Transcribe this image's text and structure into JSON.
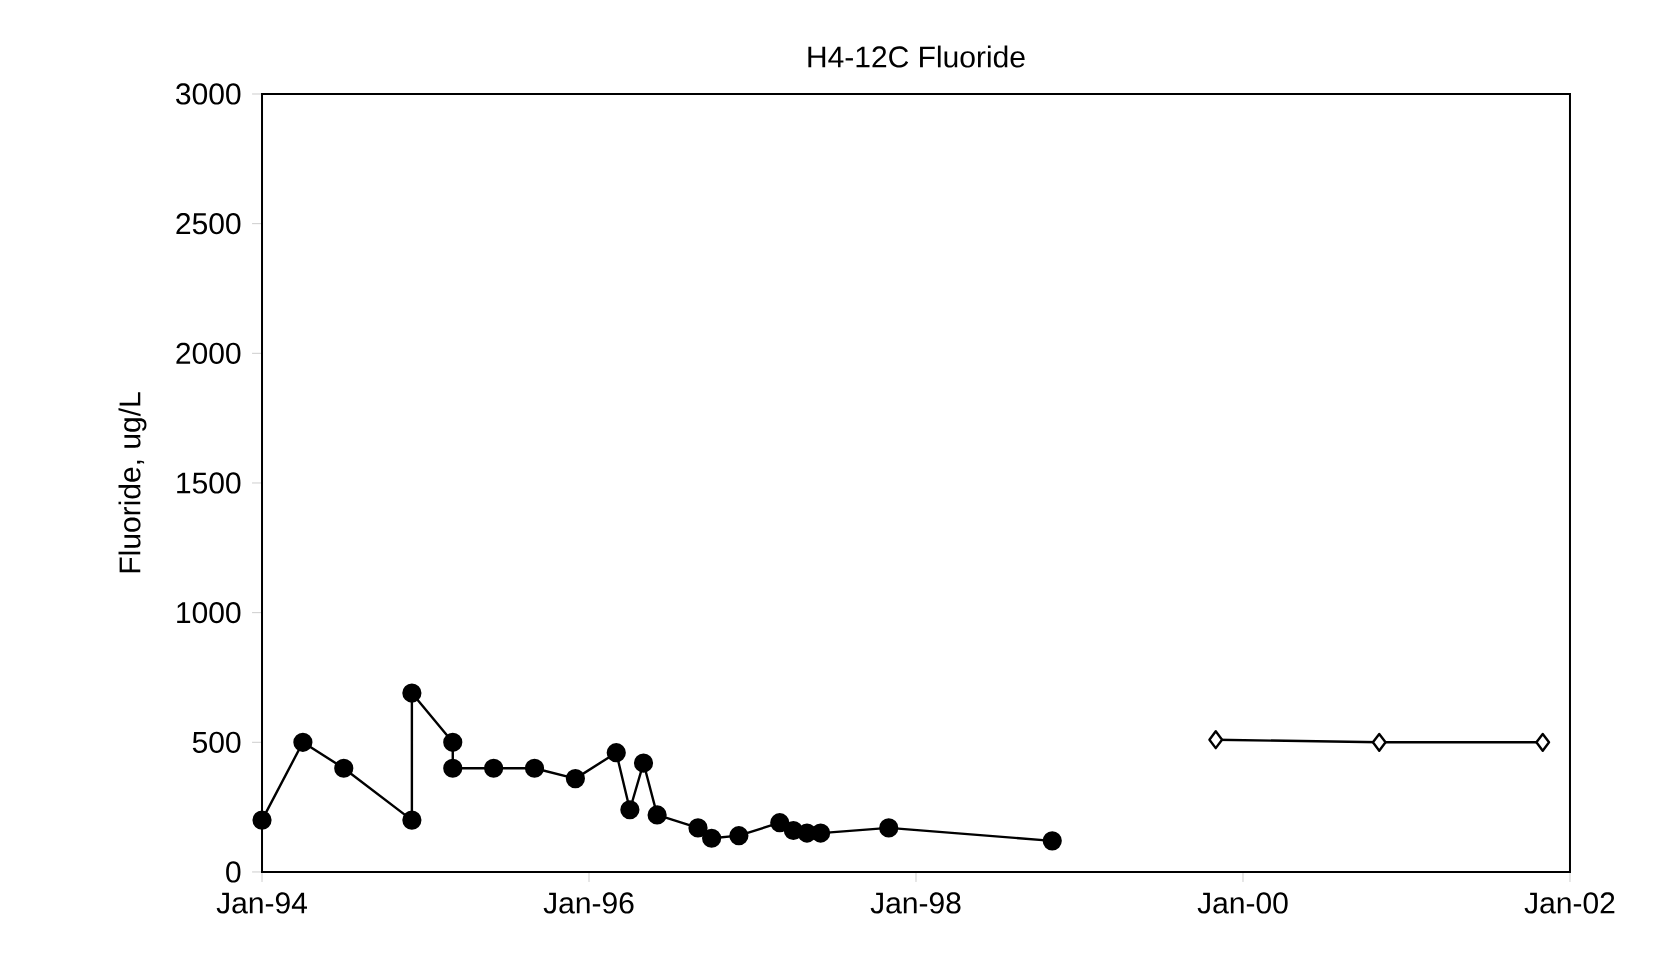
{
  "chart_data": {
    "type": "line",
    "title": "H4-12C Fluoride",
    "ylabel": "Fluoride, ug/L",
    "series": [
      {
        "color": "#000000",
        "marker": "circle",
        "x": [
          "1994-01",
          "1994-04",
          "1994-07",
          "1994-12",
          "1994-12",
          "1995-03",
          "1995-03",
          "1995-06",
          "1995-09",
          "1995-12",
          "1996-03",
          "1996-04",
          "1996-05",
          "1996-06",
          "1996-09",
          "1996-10",
          "1996-12",
          "1997-03",
          "1997-04",
          "1997-05",
          "1997-06",
          "1997-11",
          "1998-11"
        ],
        "values": [
          200,
          500,
          400,
          200,
          690,
          500,
          400,
          400,
          400,
          360,
          460,
          240,
          420,
          220,
          170,
          130,
          140,
          190,
          160,
          150,
          150,
          170,
          120
        ]
      },
      {
        "color": "#000000",
        "marker": "diamond",
        "x": [
          "1999-11",
          "2000-11",
          "2001-11"
        ],
        "values": [
          510,
          500,
          500
        ]
      }
    ],
    "xlim": [
      "1994-01",
      "2002-01"
    ],
    "xticks": [
      {
        "value": "1994-01",
        "label": "Jan-94"
      },
      {
        "value": "1996-01",
        "label": "Jan-96"
      },
      {
        "value": "1998-01",
        "label": "Jan-98"
      },
      {
        "value": "2000-01",
        "label": "Jan-00"
      },
      {
        "value": "2002-01",
        "label": "Jan-02"
      }
    ],
    "ylim": [
      0,
      3000
    ],
    "yticks": [
      0,
      500,
      1000,
      1500,
      2000,
      2500,
      3000
    ],
    "grid": false,
    "line_style": "solid"
  }
}
